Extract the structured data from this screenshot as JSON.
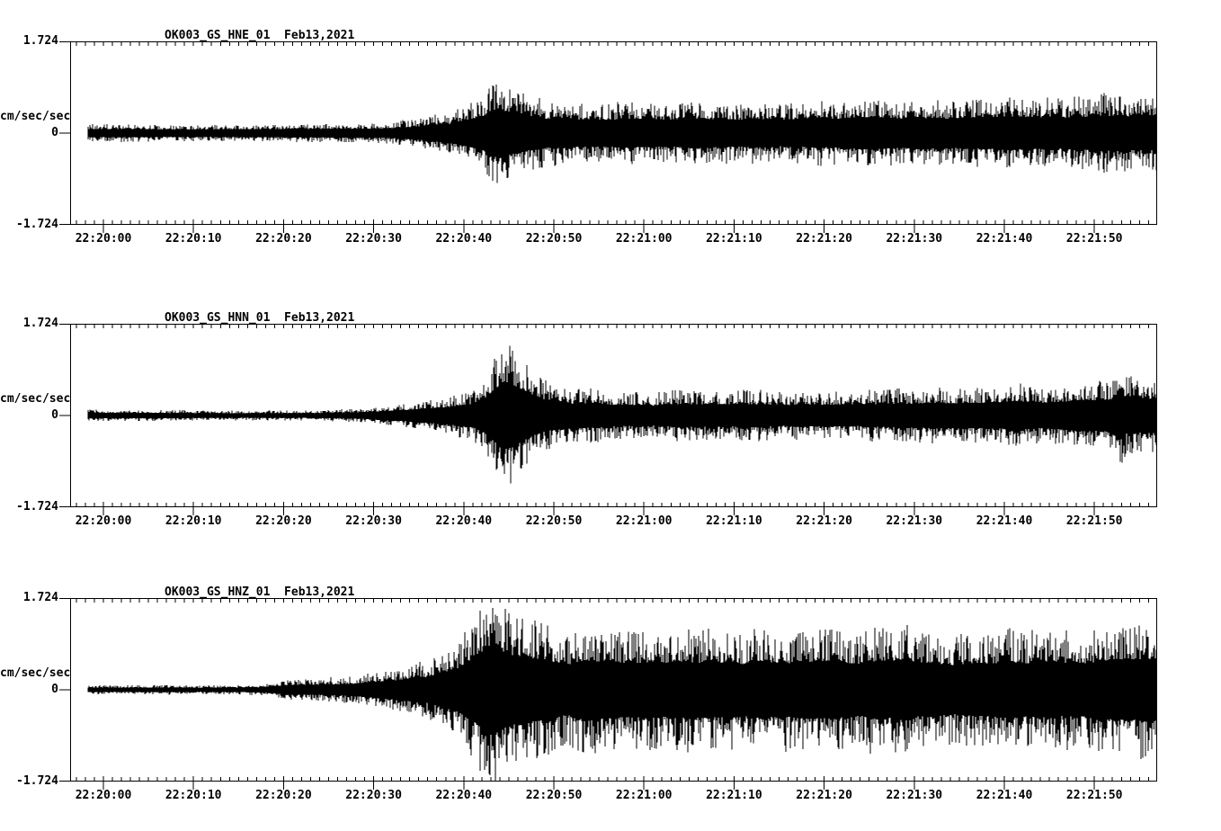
{
  "figure": {
    "background": "#ffffff",
    "trace_color": "#000000",
    "axis_color": "#000000"
  },
  "chart_data": [
    {
      "type": "line",
      "kind": "seismogram-waveform",
      "title": "OK003_GS_HNE_01  Feb13,2021",
      "ylabel": "cm/sec/sec",
      "yticks": [
        "1.724",
        "0",
        "-1.724"
      ],
      "ylim": [
        -1.724,
        1.724
      ],
      "xticks": [
        "22:20:00",
        "22:20:10",
        "22:20:20",
        "22:20:30",
        "22:20:40",
        "22:20:50",
        "22:21:00",
        "22:21:10",
        "22:21:20",
        "22:21:30",
        "22:21:40",
        "22:21:50"
      ],
      "x_seconds_per_major_tick": 10,
      "x_seconds_per_minor_tick": 1,
      "envelope_t_amp": [
        [
          -1.7,
          0.15
        ],
        [
          16,
          0.14
        ],
        [
          30,
          0.17
        ],
        [
          34,
          0.24
        ],
        [
          38,
          0.34
        ],
        [
          40,
          0.44
        ],
        [
          42,
          0.61
        ],
        [
          43.2,
          0.85
        ],
        [
          44,
          0.96
        ],
        [
          45.2,
          0.81
        ],
        [
          47,
          0.68
        ],
        [
          50,
          0.56
        ],
        [
          56,
          0.51
        ],
        [
          66,
          0.52
        ],
        [
          76,
          0.54
        ],
        [
          86,
          0.57
        ],
        [
          96,
          0.59
        ],
        [
          106,
          0.63
        ],
        [
          117,
          0.69
        ]
      ]
    },
    {
      "type": "line",
      "kind": "seismogram-waveform",
      "title": "OK003_GS_HNN_01  Feb13,2021",
      "ylabel": "cm/sec/sec",
      "yticks": [
        "1.724",
        "0",
        "-1.724"
      ],
      "ylim": [
        -1.724,
        1.724
      ],
      "xticks": [
        "22:20:00",
        "22:20:10",
        "22:20:20",
        "22:20:30",
        "22:20:40",
        "22:20:50",
        "22:21:00",
        "22:21:10",
        "22:21:20",
        "22:21:30",
        "22:21:40",
        "22:21:50"
      ],
      "x_seconds_per_major_tick": 10,
      "x_seconds_per_minor_tick": 1,
      "envelope_t_amp": [
        [
          -1.7,
          0.1
        ],
        [
          16,
          0.08
        ],
        [
          26,
          0.1
        ],
        [
          30,
          0.14
        ],
        [
          34,
          0.2
        ],
        [
          38,
          0.3
        ],
        [
          41,
          0.44
        ],
        [
          42.5,
          0.68
        ],
        [
          43.7,
          1.1
        ],
        [
          44.5,
          1.35
        ],
        [
          46,
          1.01
        ],
        [
          47.5,
          0.76
        ],
        [
          49,
          0.59
        ],
        [
          52,
          0.47
        ],
        [
          58,
          0.42
        ],
        [
          66,
          0.41
        ],
        [
          76,
          0.42
        ],
        [
          86,
          0.44
        ],
        [
          96,
          0.47
        ],
        [
          104,
          0.51
        ],
        [
          110,
          0.54
        ],
        [
          112,
          0.6
        ],
        [
          112.8,
          0.92
        ],
        [
          113.6,
          0.7
        ],
        [
          115,
          0.62
        ],
        [
          117,
          0.64
        ]
      ]
    },
    {
      "type": "line",
      "kind": "seismogram-waveform",
      "title": "OK003_GS_HNZ_01  Feb13,2021",
      "ylabel": "cm/sec/sec",
      "yticks": [
        "1.724",
        "0",
        "-1.724"
      ],
      "ylim": [
        -1.724,
        1.724
      ],
      "xticks": [
        "22:20:00",
        "22:20:10",
        "22:20:20",
        "22:20:30",
        "22:20:40",
        "22:20:50",
        "22:21:00",
        "22:21:10",
        "22:21:20",
        "22:21:30",
        "22:21:40",
        "22:21:50"
      ],
      "x_seconds_per_major_tick": 10,
      "x_seconds_per_minor_tick": 1,
      "envelope_t_amp": [
        [
          -1.7,
          0.08
        ],
        [
          14,
          0.08
        ],
        [
          18,
          0.1
        ],
        [
          20,
          0.17
        ],
        [
          24,
          0.19
        ],
        [
          28,
          0.24
        ],
        [
          32,
          0.34
        ],
        [
          36,
          0.51
        ],
        [
          39,
          0.76
        ],
        [
          41,
          1.1
        ],
        [
          42.7,
          1.49
        ],
        [
          43.5,
          1.69
        ],
        [
          44.7,
          1.44
        ],
        [
          46,
          1.27
        ],
        [
          49,
          1.15
        ],
        [
          54,
          1.05
        ],
        [
          60,
          1.01
        ],
        [
          66,
          1.05
        ],
        [
          72,
          0.98
        ],
        [
          78,
          1.06
        ],
        [
          84,
          1.01
        ],
        [
          90,
          1.08
        ],
        [
          96,
          1.05
        ],
        [
          102,
          1.12
        ],
        [
          108,
          1.06
        ],
        [
          113,
          1.15
        ],
        [
          117,
          1.22
        ]
      ]
    }
  ]
}
